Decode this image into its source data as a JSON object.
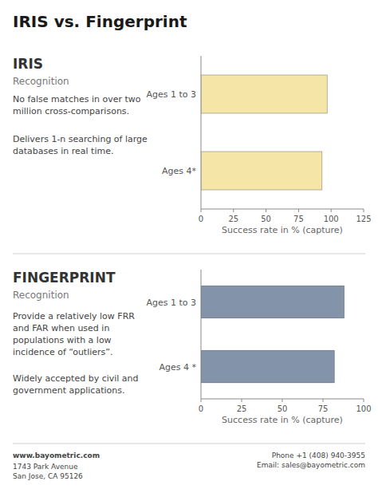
{
  "title": "IRIS vs. Fingerprint",
  "chart_data": [
    {
      "type": "bar",
      "orientation": "horizontal",
      "title": "IRIS",
      "subtitle": "Recognition",
      "annotations": [
        "No false matches in over two\nmillion cross-comparisons.",
        "Delivers 1-n searching of large\ndatabases in real time."
      ],
      "categories": [
        "Ages 1 to 3",
        "Ages 4*"
      ],
      "values": [
        97,
        93
      ],
      "color": "#f5e6a8",
      "xlim": [
        0,
        125
      ],
      "xticks": [
        0,
        25,
        50,
        75,
        100,
        125
      ],
      "xlabel": "Success rate in % (capture)",
      "grid": false
    },
    {
      "type": "bar",
      "orientation": "horizontal",
      "title": "FINGERPRINT",
      "subtitle": "Recognition",
      "annotations": [
        "Provide a relatively low FRR\nand FAR when used in\npopulations with a low\nincidence of “outliers”.",
        "Widely accepted by civil and\ngovernment applications."
      ],
      "categories": [
        "Ages 1 to 3",
        "Ages 4 *"
      ],
      "values": [
        88,
        82
      ],
      "color": "#8394aa",
      "xlim": [
        0,
        100
      ],
      "xticks": [
        0,
        25,
        50,
        75,
        100
      ],
      "xlabel": "Success rate in % (capture)",
      "grid": false
    }
  ],
  "annotations": [
    "www.bayometric.com",
    "1743 Park Avenue\nSan Jose, CA 95126",
    "Phone +1 (408) 940-3955\nEmail: sales@bayometric.com"
  ]
}
